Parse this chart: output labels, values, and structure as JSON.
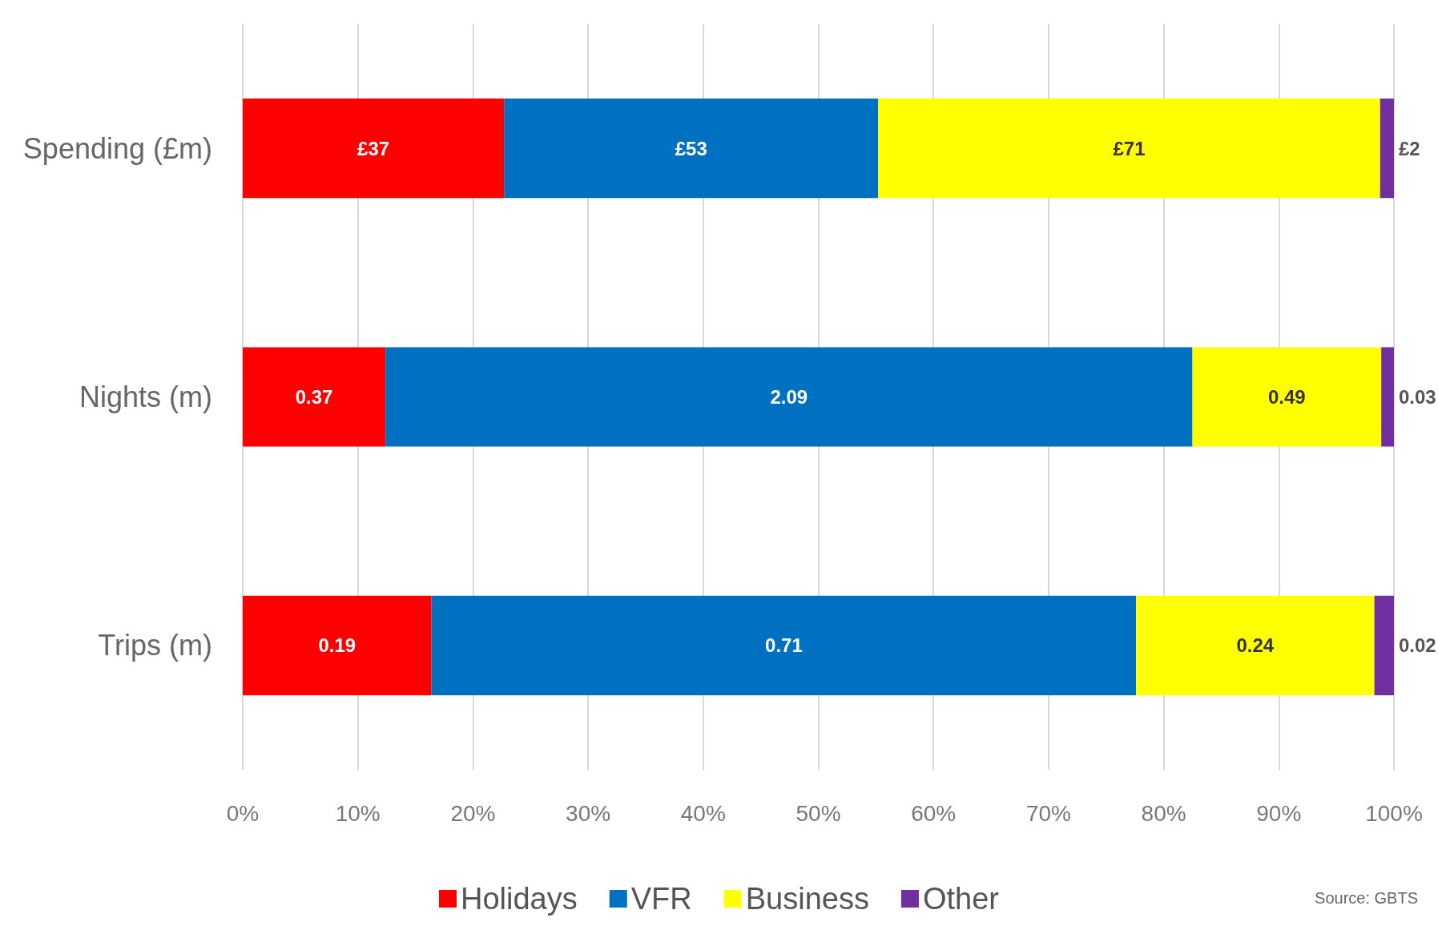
{
  "chart_data": {
    "type": "bar",
    "orientation": "horizontal",
    "stacked": true,
    "categories": [
      "Spending (£m)",
      "Nights (m)",
      "Trips (m)"
    ],
    "series": [
      {
        "name": "Holidays",
        "color": "#ff0000",
        "values": [
          22.7,
          12.4,
          16.4
        ]
      },
      {
        "name": "VFR",
        "color": "#0070c0",
        "values": [
          32.5,
          70.1,
          61.2
        ]
      },
      {
        "name": "Business",
        "color": "#ffff00",
        "values": [
          43.6,
          16.4,
          20.7
        ]
      },
      {
        "name": "Other",
        "color": "#7030a0",
        "values": [
          1.2,
          1.1,
          1.7
        ]
      }
    ],
    "xlim": [
      0,
      100
    ],
    "xticks": [
      {
        "value": 0,
        "label": "0%"
      },
      {
        "value": 10,
        "label": "10%"
      },
      {
        "value": 20,
        "label": "20%"
      },
      {
        "value": 30,
        "label": "30%"
      },
      {
        "value": 40,
        "label": "40%"
      },
      {
        "value": 50,
        "label": "50%"
      },
      {
        "value": 60,
        "label": "60%"
      },
      {
        "value": 70,
        "label": "70%"
      },
      {
        "value": 80,
        "label": "80%"
      },
      {
        "value": 90,
        "label": "90%"
      },
      {
        "value": 100,
        "label": "100%"
      }
    ],
    "grid": "x",
    "legend": "bottom",
    "annotations": [
      "£37",
      "£53",
      "£71",
      "£2",
      "0.37",
      "2.09",
      "0.49",
      "0.03",
      "0.19",
      "0.71",
      "0.24",
      "0.02",
      "Source: GBTS"
    ]
  }
}
